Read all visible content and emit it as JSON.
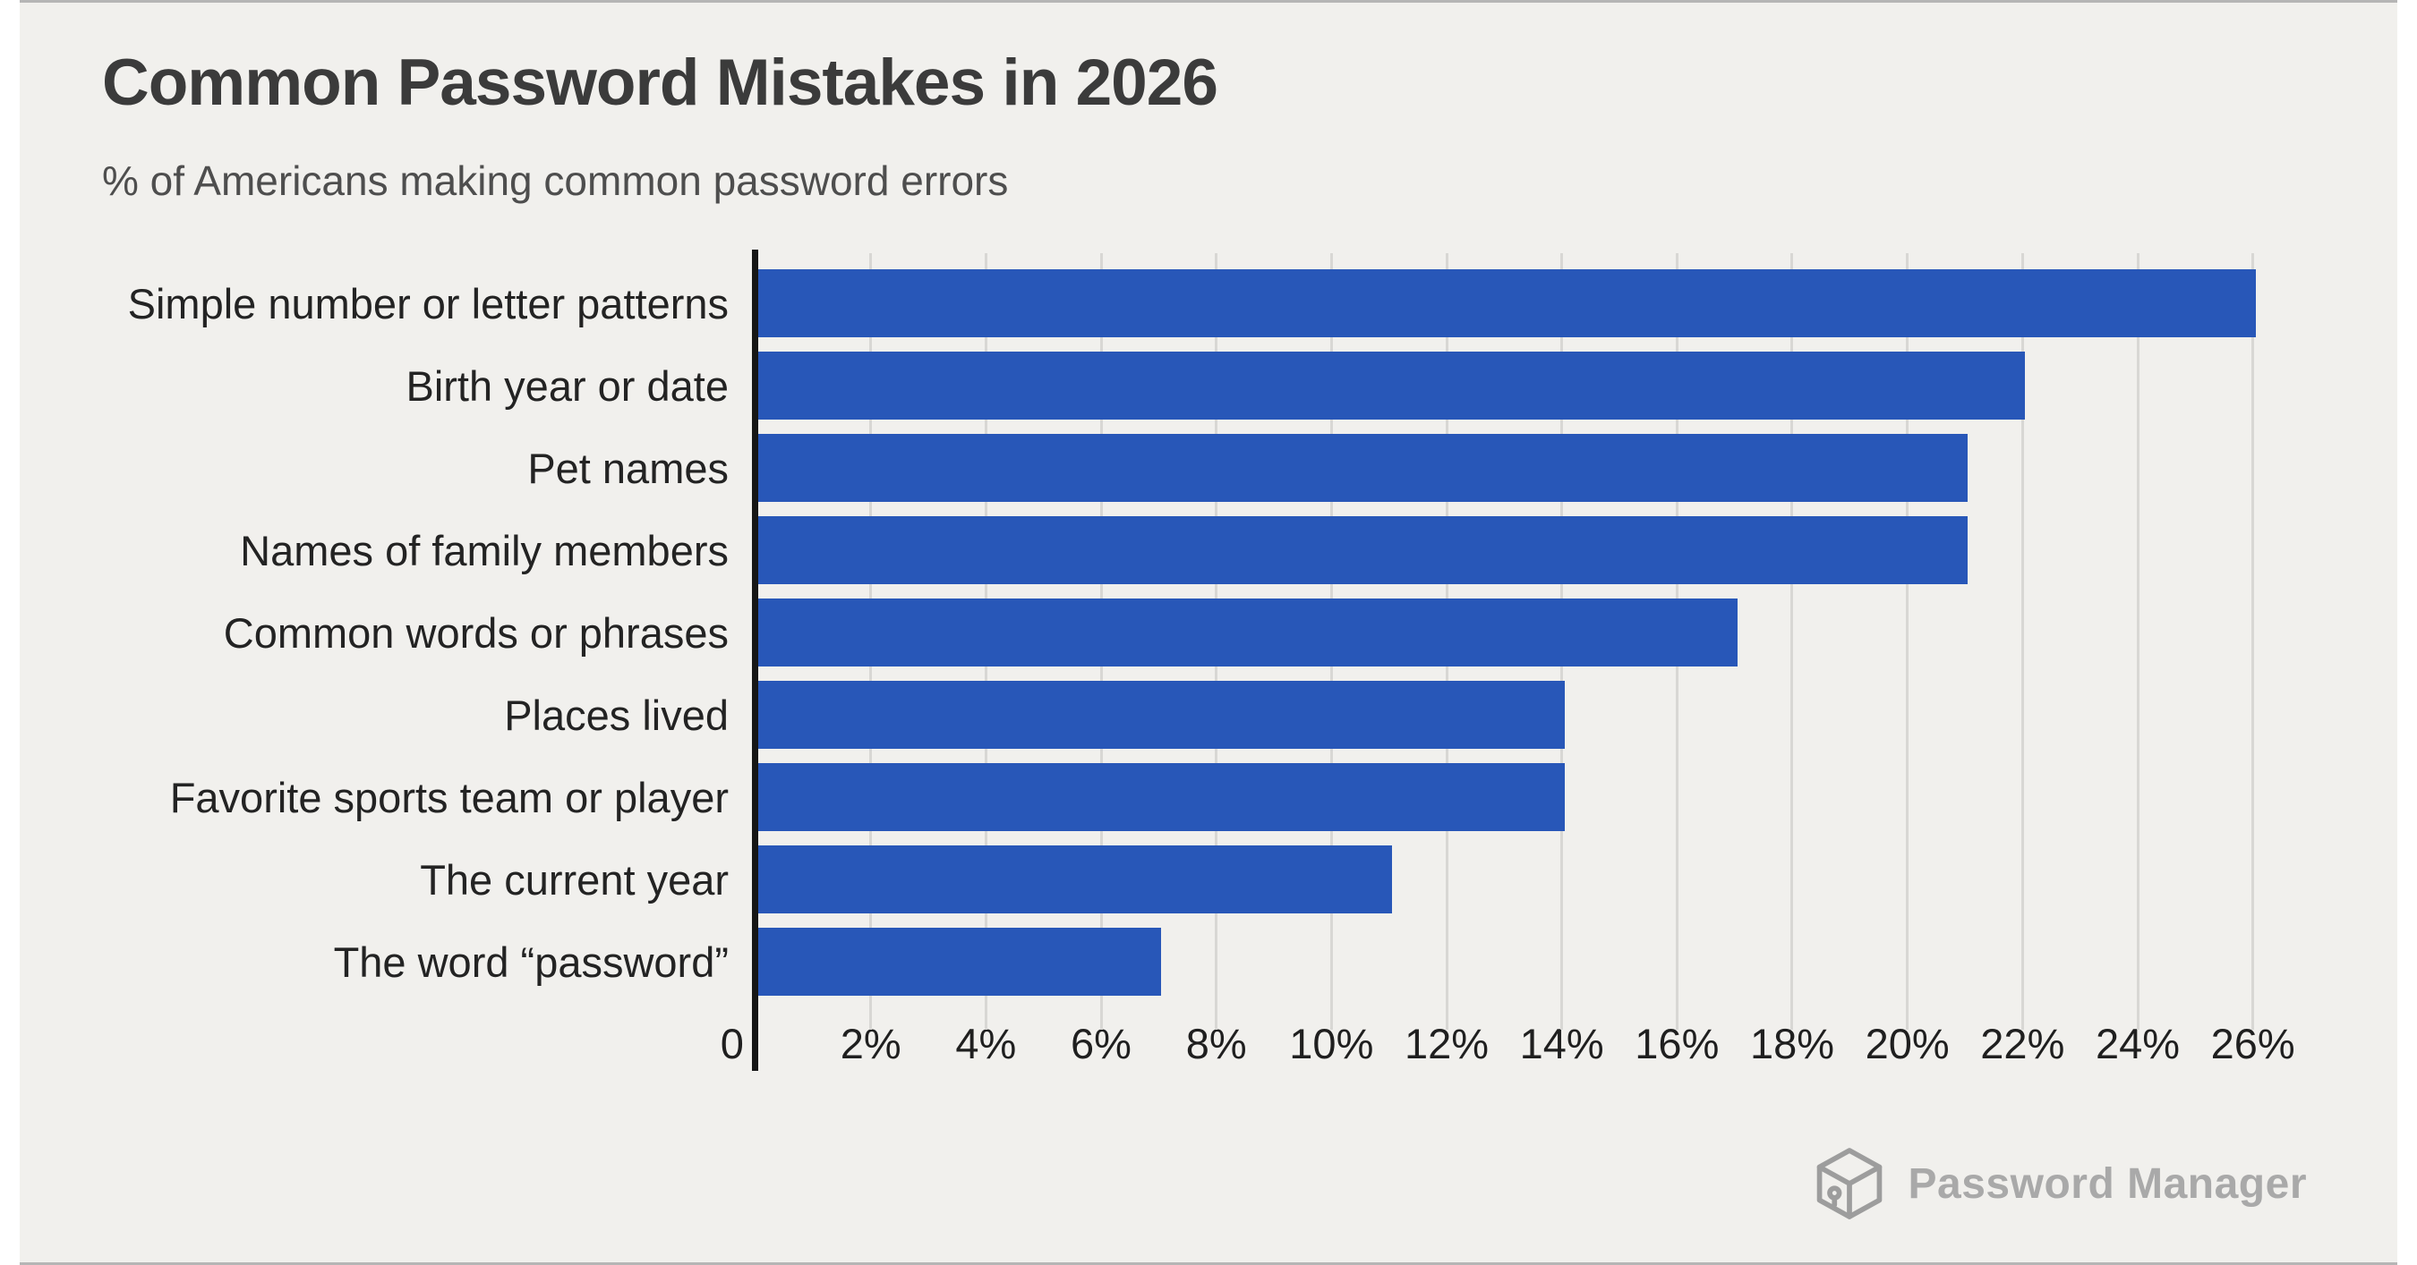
{
  "chart_data": {
    "type": "bar",
    "orientation": "horizontal",
    "title": "Common Password Mistakes in 2026",
    "subtitle": "% of Americans making common password errors",
    "xlabel": "",
    "ylabel": "",
    "categories": [
      "Simple number or letter patterns",
      "Birth year or date",
      "Pet names",
      "Names of family members",
      "Common words or phrases",
      "Places lived",
      "Favorite sports team or player",
      "The current year",
      "The word “password”"
    ],
    "values": [
      26,
      22,
      21,
      21,
      17,
      14,
      14,
      11,
      7
    ],
    "unit": "%",
    "xlim": [
      0,
      27
    ],
    "x_tick_values": [
      2,
      4,
      6,
      8,
      10,
      12,
      14,
      16,
      18,
      20,
      22,
      24,
      26
    ],
    "x_tick_suffix": "%",
    "zero_label": "0",
    "grid": true,
    "legend": "none",
    "bar_color": "#2857b8"
  },
  "brand": {
    "name": "Password Manager",
    "icon": "cube-logo-icon"
  },
  "colors": {
    "background": "#f1f0ed",
    "frame_line": "#b5b5b5",
    "title": "#3b3b3b",
    "subtitle": "#4e4e4e",
    "label": "#232323",
    "tick": "#1f1f1f",
    "grid": "#d8d7d4",
    "axis": "#161616",
    "bar": "#2857b8",
    "brand": "#a9a9a9",
    "brand_icon": "#9d9d9d"
  }
}
